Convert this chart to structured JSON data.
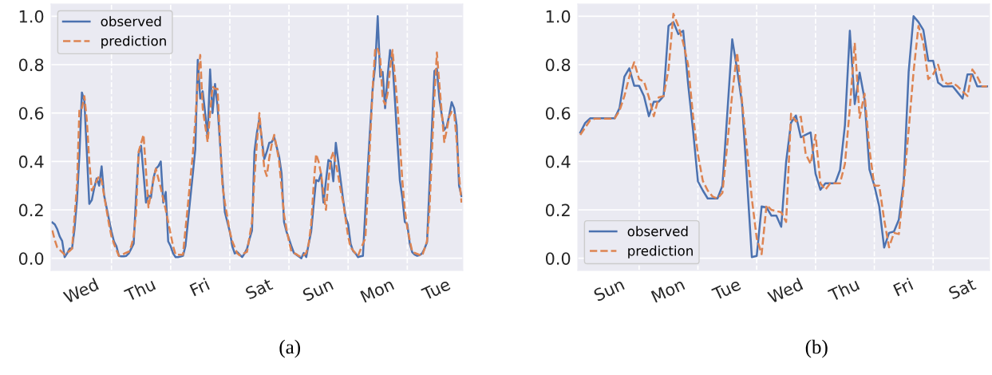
{
  "chart_data": [
    {
      "type": "line",
      "annotations": [
        "(a)"
      ],
      "ylim": [
        -0.05,
        1.05
      ],
      "categories": [
        null,
        null,
        null,
        null,
        null,
        null,
        null,
        null,
        null,
        null,
        null,
        null,
        "Wed",
        null,
        null,
        null,
        null,
        null,
        null,
        null,
        null,
        null,
        null,
        null,
        null,
        null,
        null,
        null,
        null,
        null,
        null,
        null,
        null,
        null,
        null,
        null,
        "Thu",
        null,
        null,
        null,
        null,
        null,
        null,
        null,
        null,
        null,
        null,
        null,
        null,
        null,
        null,
        null,
        null,
        null,
        null,
        null,
        null,
        null,
        null,
        null,
        "Fri",
        null,
        null,
        null,
        null,
        null,
        null,
        null,
        null,
        null,
        null,
        null,
        null,
        null,
        null,
        null,
        null,
        null,
        null,
        null,
        null,
        null,
        null,
        null,
        "Sat",
        null,
        null,
        null,
        null,
        null,
        null,
        null,
        null,
        null,
        null,
        null,
        null,
        null,
        null,
        null,
        null,
        null,
        null,
        null,
        null,
        null,
        null,
        null,
        "Sun",
        null,
        null,
        null,
        null,
        null,
        null,
        null,
        null,
        null,
        null,
        null,
        null,
        null,
        null,
        null,
        null,
        null,
        null,
        null,
        null,
        null,
        null,
        null,
        "Mon",
        null,
        null,
        null,
        null,
        null,
        null,
        null,
        null,
        null,
        null,
        null,
        null,
        null,
        null,
        null,
        null,
        null,
        null,
        null,
        null,
        null,
        null,
        null,
        "Tue",
        null,
        null,
        null,
        null,
        null,
        null,
        null,
        null,
        null,
        null
      ],
      "yticks": [
        {
          "value": 0,
          "label": "0.0"
        },
        {
          "value": 0.2,
          "label": "0.2"
        },
        {
          "value": 0.4,
          "label": "0.4"
        },
        {
          "value": 0.6,
          "label": "0.6"
        },
        {
          "value": 0.8,
          "label": "0.8"
        },
        {
          "value": 1.0,
          "label": "1.0"
        }
      ],
      "grid": "y",
      "legend": "top left",
      "series": [
        {
          "name": "observed",
          "color": "#4c72b0",
          "line_style": "solid",
          "values": [
            0.148,
            0.14,
            0.12,
            0.09,
            0.071,
            0.005,
            0.02,
            0.04,
            0.04,
            0.12,
            0.24,
            0.43,
            0.685,
            0.65,
            0.44,
            0.225,
            0.24,
            0.29,
            0.33,
            0.3,
            0.38,
            0.26,
            0.21,
            0.16,
            0.11,
            0.07,
            0.05,
            0.01,
            0.008,
            0.008,
            0.01,
            0.02,
            0.04,
            0.06,
            0.26,
            0.43,
            0.465,
            0.35,
            0.23,
            0.26,
            0.25,
            0.33,
            0.37,
            0.38,
            0.4,
            0.23,
            0.274,
            0.07,
            0.05,
            0.02,
            0.005,
            0.005,
            0.007,
            0.01,
            0.05,
            0.15,
            0.25,
            0.35,
            0.45,
            0.82,
            0.66,
            0.69,
            0.6,
            0.5,
            0.78,
            0.6,
            0.72,
            0.63,
            0.48,
            0.33,
            0.19,
            0.15,
            0.11,
            0.05,
            0.02,
            0.026,
            0.015,
            0.005,
            0.02,
            0.04,
            0.08,
            0.115,
            0.44,
            0.52,
            0.575,
            0.49,
            0.41,
            0.44,
            0.477,
            0.48,
            0.5,
            0.46,
            0.42,
            0.35,
            0.15,
            0.11,
            0.08,
            0.05,
            0.022,
            0.015,
            0.007,
            0.0,
            0.022,
            0.005,
            0.06,
            0.11,
            0.22,
            0.323,
            0.318,
            0.35,
            0.23,
            0.32,
            0.406,
            0.4,
            0.318,
            0.477,
            0.4,
            0.32,
            0.24,
            0.17,
            0.14,
            0.06,
            0.03,
            0.02,
            0.005,
            0.008,
            0.01,
            0.2,
            0.38,
            0.55,
            0.707,
            0.8,
            1.0,
            0.75,
            0.77,
            0.62,
            0.75,
            0.86,
            0.81,
            0.65,
            0.48,
            0.32,
            0.25,
            0.15,
            0.14,
            0.06,
            0.025,
            0.015,
            0.01,
            0.013,
            0.02,
            0.04,
            0.066,
            0.3,
            0.54,
            0.773,
            0.784,
            0.66,
            0.59,
            0.53,
            0.545,
            0.59,
            0.645,
            0.62,
            0.55,
            0.3,
            0.257
          ]
        },
        {
          "name": "prediction",
          "color": "#dd8452",
          "line_style": "dashed",
          "values": [
            0.115,
            0.075,
            0.045,
            0.035,
            0.025,
            0.015,
            0.023,
            0.03,
            0.04,
            0.17,
            0.3,
            0.62,
            0.62,
            0.67,
            0.57,
            0.4,
            0.28,
            0.3,
            0.32,
            0.34,
            0.32,
            0.26,
            0.2,
            0.14,
            0.09,
            0.06,
            0.035,
            0.01,
            0.014,
            0.018,
            0.023,
            0.027,
            0.05,
            0.09,
            0.19,
            0.44,
            0.475,
            0.51,
            0.36,
            0.21,
            0.27,
            0.32,
            0.37,
            0.33,
            0.29,
            0.245,
            0.2,
            0.15,
            0.1,
            0.05,
            0.015,
            0.015,
            0.015,
            0.015,
            0.12,
            0.22,
            0.33,
            0.43,
            0.57,
            0.73,
            0.84,
            0.62,
            0.55,
            0.48,
            0.6,
            0.71,
            0.7,
            0.7,
            0.5,
            0.3,
            0.23,
            0.17,
            0.11,
            0.07,
            0.045,
            0.02,
            0.012,
            0.017,
            0.022,
            0.027,
            0.09,
            0.15,
            0.33,
            0.48,
            0.6,
            0.48,
            0.37,
            0.34,
            0.415,
            0.47,
            0.51,
            0.46,
            0.4,
            0.29,
            0.18,
            0.12,
            0.07,
            0.027,
            0.022,
            0.017,
            0.01,
            0.005,
            0.013,
            0.022,
            0.06,
            0.14,
            0.3,
            0.43,
            0.4,
            0.35,
            0.27,
            0.2,
            0.32,
            0.41,
            0.44,
            0.39,
            0.34,
            0.28,
            0.23,
            0.16,
            0.09,
            0.045,
            0.033,
            0.02,
            0.01,
            0.035,
            0.06,
            0.083,
            0.29,
            0.5,
            0.71,
            0.87,
            0.865,
            0.83,
            0.66,
            0.635,
            0.68,
            0.78,
            0.86,
            0.75,
            0.63,
            0.48,
            0.32,
            0.2,
            0.126,
            0.075,
            0.027,
            0.022,
            0.018,
            0.014,
            0.01,
            0.04,
            0.07,
            0.2,
            0.44,
            0.67,
            0.85,
            0.72,
            0.6,
            0.48,
            0.53,
            0.585,
            0.605,
            0.6,
            0.49,
            0.34,
            0.23
          ]
        }
      ]
    },
    {
      "type": "line",
      "annotations": [
        "(b)"
      ],
      "ylim": [
        -0.05,
        1.05
      ],
      "categories": [
        null,
        null,
        null,
        null,
        null,
        null,
        "Sun",
        null,
        null,
        null,
        null,
        null,
        null,
        null,
        null,
        null,
        null,
        null,
        "Mon",
        null,
        null,
        null,
        null,
        null,
        null,
        null,
        null,
        null,
        null,
        null,
        "Tue",
        null,
        null,
        null,
        null,
        null,
        null,
        null,
        null,
        null,
        null,
        null,
        "Wed",
        null,
        null,
        null,
        null,
        null,
        null,
        null,
        null,
        null,
        null,
        null,
        "Thu",
        null,
        null,
        null,
        null,
        null,
        null,
        null,
        null,
        null,
        null,
        null,
        "Fri",
        null,
        null,
        null,
        null,
        null,
        null,
        null,
        null,
        null,
        null,
        null,
        "Sat",
        null,
        null,
        null,
        null,
        null
      ],
      "yticks": [
        {
          "value": 0,
          "label": "0.0"
        },
        {
          "value": 0.2,
          "label": "0.2"
        },
        {
          "value": 0.4,
          "label": "0.4"
        },
        {
          "value": 0.6,
          "label": "0.6"
        },
        {
          "value": 0.8,
          "label": "0.8"
        },
        {
          "value": 1.0,
          "label": "1.0"
        }
      ],
      "grid": "y",
      "legend": "bottom left",
      "series": [
        {
          "name": "observed",
          "color": "#4c72b0",
          "line_style": "solid",
          "values": [
            0.52,
            0.559,
            0.578,
            0.578,
            0.578,
            0.578,
            0.578,
            0.578,
            0.62,
            0.75,
            0.785,
            0.713,
            0.713,
            0.67,
            0.587,
            0.647,
            0.647,
            0.67,
            0.96,
            0.976,
            0.926,
            0.94,
            0.72,
            0.53,
            0.318,
            0.28,
            0.247,
            0.247,
            0.247,
            0.3,
            0.6,
            0.905,
            0.78,
            0.64,
            0.33,
            0.005,
            0.01,
            0.214,
            0.21,
            0.176,
            0.176,
            0.13,
            0.399,
            0.56,
            0.59,
            0.5,
            0.51,
            0.52,
            0.35,
            0.283,
            0.31,
            0.31,
            0.31,
            0.365,
            0.55,
            0.94,
            0.637,
            0.767,
            0.658,
            0.367,
            0.3,
            0.214,
            0.044,
            0.105,
            0.11,
            0.16,
            0.32,
            0.77,
            1.0,
            0.976,
            0.943,
            0.816,
            0.816,
            0.726,
            0.71,
            0.71,
            0.71,
            0.685,
            0.66,
            0.76,
            0.76,
            0.71,
            0.71,
            0.71
          ]
        },
        {
          "name": "prediction",
          "color": "#dd8452",
          "line_style": "dashed",
          "values": [
            0.51,
            0.54,
            0.57,
            0.577,
            0.577,
            0.577,
            0.577,
            0.577,
            0.61,
            0.67,
            0.75,
            0.81,
            0.74,
            0.73,
            0.665,
            0.587,
            0.665,
            0.67,
            0.78,
            1.01,
            0.96,
            0.89,
            0.8,
            0.59,
            0.43,
            0.32,
            0.28,
            0.255,
            0.247,
            0.27,
            0.47,
            0.68,
            0.85,
            0.65,
            0.45,
            0.247,
            0.083,
            0.017,
            0.22,
            0.2,
            0.195,
            0.19,
            0.15,
            0.597,
            0.565,
            0.585,
            0.43,
            0.39,
            0.51,
            0.31,
            0.283,
            0.31,
            0.31,
            0.31,
            0.39,
            0.62,
            0.89,
            0.58,
            0.68,
            0.45,
            0.3,
            0.3,
            0.16,
            0.045,
            0.105,
            0.1,
            0.3,
            0.53,
            0.77,
            0.96,
            0.89,
            0.74,
            0.76,
            0.8,
            0.73,
            0.72,
            0.725,
            0.71,
            0.69,
            0.67,
            0.78,
            0.75,
            0.71,
            0.71
          ]
        }
      ]
    }
  ]
}
